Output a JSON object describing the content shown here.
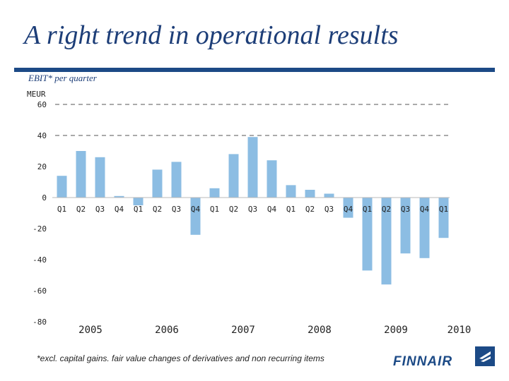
{
  "slide": {
    "title": "A right trend in operational results",
    "subtitle": "EBIT* per quarter",
    "footnote": "*excl. capital gains. fair value changes of derivatives and non recurring items",
    "logo_text": "FINNAIR"
  },
  "colors": {
    "bar": "#8cbde3",
    "title": "#1d3e78",
    "title_bar": "#1c4a86"
  },
  "icons": {
    "logo": "finnair-logo-icon"
  },
  "chart_data": {
    "type": "bar",
    "title": "EBIT* per quarter",
    "ylabel": "MEUR",
    "xlabel": "",
    "ylim": [
      -80,
      60
    ],
    "yticks": [
      60,
      40,
      20,
      0,
      -20,
      -40,
      -60,
      -80
    ],
    "dashed_gridlines": [
      60,
      40
    ],
    "categories": [
      "Q1",
      "Q2",
      "Q3",
      "Q4",
      "Q1",
      "Q2",
      "Q3",
      "Q4",
      "Q1",
      "Q2",
      "Q3",
      "Q4",
      "Q1",
      "Q2",
      "Q3",
      "Q4",
      "Q1",
      "Q2",
      "Q3",
      "Q4",
      "Q1"
    ],
    "values": [
      14,
      30,
      26,
      1,
      -5,
      18,
      23,
      -24,
      6,
      28,
      39,
      24,
      8,
      5,
      2.5,
      -13,
      -47,
      -56,
      -36,
      -39,
      -26
    ],
    "years": [
      {
        "label": "2005",
        "start": 0,
        "count": 4
      },
      {
        "label": "2006",
        "start": 4,
        "count": 4
      },
      {
        "label": "2007",
        "start": 8,
        "count": 4
      },
      {
        "label": "2008",
        "start": 12,
        "count": 4
      },
      {
        "label": "2009",
        "start": 16,
        "count": 4
      },
      {
        "label": "2010",
        "start": 20,
        "count": 1
      }
    ]
  }
}
